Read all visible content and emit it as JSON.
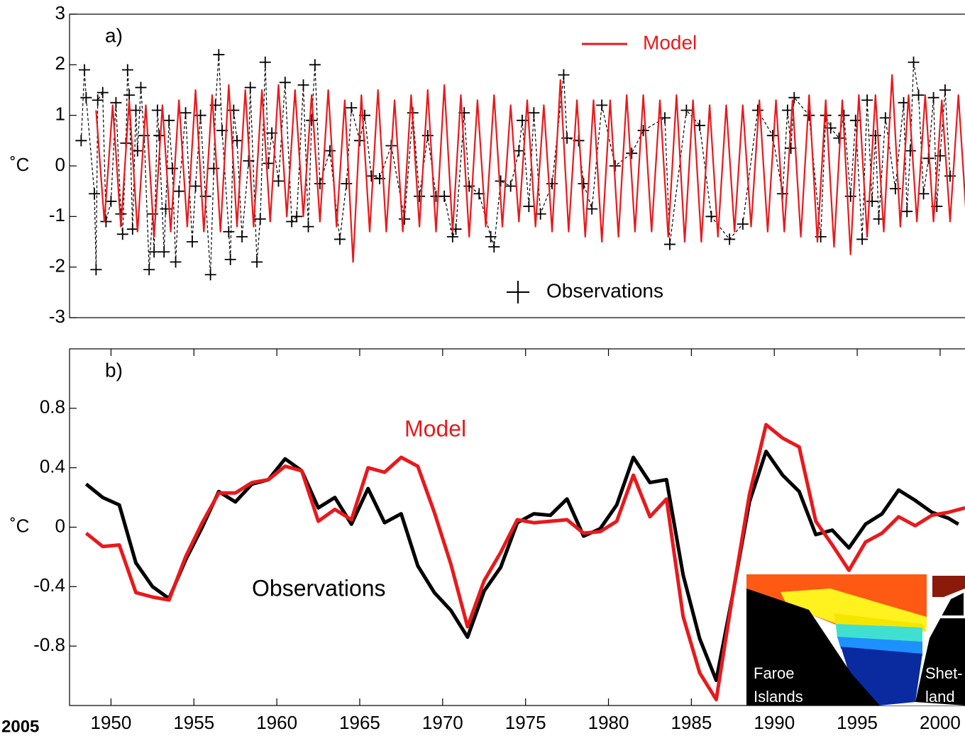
{
  "chart_data": [
    {
      "type": "line",
      "title": "a)",
      "ylabel": "˚C",
      "xlim": [
        1947.5,
        2001.5
      ],
      "ylim": [
        -3,
        3
      ],
      "yticks": [
        -3,
        -2,
        -1,
        0,
        1,
        2,
        3
      ],
      "series": [
        {
          "name": "Model",
          "color": "#e8191c",
          "x": [
            1949.1,
            1949.6,
            1950.1,
            1950.6,
            1951.1,
            1951.6,
            1952.1,
            1952.6,
            1953.1,
            1953.6,
            1954.1,
            1954.6,
            1955.1,
            1955.6,
            1956.1,
            1956.6,
            1957.1,
            1957.6,
            1958.1,
            1958.6,
            1959.1,
            1959.6,
            1960.1,
            1960.6,
            1961.1,
            1961.6,
            1962.1,
            1962.6,
            1963.1,
            1963.6,
            1964.1,
            1964.6,
            1965.1,
            1965.6,
            1966.1,
            1966.6,
            1967.1,
            1967.6,
            1968.1,
            1968.6,
            1969.1,
            1969.6,
            1970.1,
            1970.6,
            1971.1,
            1971.6,
            1972.1,
            1972.6,
            1973.1,
            1973.6,
            1974.1,
            1974.6,
            1975.1,
            1975.6,
            1976.1,
            1976.6,
            1977.1,
            1977.6,
            1978.1,
            1978.6,
            1979.1,
            1979.6,
            1980.1,
            1980.6,
            1981.1,
            1981.6,
            1982.1,
            1982.6,
            1983.1,
            1983.6,
            1984.1,
            1984.6,
            1985.1,
            1985.6,
            1986.1,
            1986.6,
            1987.1,
            1987.6,
            1988.1,
            1988.6,
            1989.1,
            1989.6,
            1990.1,
            1990.6,
            1991.1,
            1991.6,
            1992.1,
            1992.6,
            1993.1,
            1993.6,
            1994.1,
            1994.6,
            1995.1,
            1995.6,
            1996.1,
            1996.6,
            1997.1,
            1997.6,
            1998.1,
            1998.6,
            1999.1,
            1999.6,
            2000.1,
            2000.6,
            2001.1,
            2001.6
          ],
          "values": [
            1.1,
            -1.1,
            1.2,
            -1.2,
            1.3,
            -1.3,
            1.2,
            -1.4,
            1.2,
            -1.3,
            1.3,
            -1.2,
            1.5,
            -1.3,
            1.4,
            -1.3,
            1.6,
            -1.2,
            1.5,
            -1.2,
            1.5,
            -1.1,
            1.6,
            -1.0,
            1.5,
            -1.0,
            1.4,
            -1.1,
            1.5,
            -1.2,
            1.3,
            -1.9,
            1.4,
            -1.3,
            1.5,
            -1.3,
            1.3,
            -1.3,
            1.4,
            -1.2,
            1.5,
            -1.3,
            1.6,
            -1.3,
            1.4,
            -1.4,
            1.3,
            -1.2,
            1.4,
            -1.2,
            1.2,
            -1.1,
            1.3,
            -1.2,
            1.2,
            -1.3,
            1.7,
            -1.3,
            1.3,
            -1.4,
            1.3,
            -1.5,
            1.3,
            -1.4,
            1.4,
            -1.3,
            1.4,
            -1.3,
            1.3,
            -1.4,
            1.4,
            -1.5,
            1.3,
            -1.5,
            1.2,
            -1.4,
            1.2,
            -1.3,
            1.2,
            -1.2,
            1.3,
            -1.3,
            1.3,
            -1.3,
            1.3,
            -1.4,
            1.4,
            -1.5,
            1.3,
            -1.6,
            1.3,
            -1.75,
            1.4,
            -1.4,
            1.4,
            -1.3,
            1.8,
            -1.2,
            1.4,
            -1.1,
            1.4,
            -1.1,
            1.3,
            -1.1,
            1.4,
            -1.1
          ]
        },
        {
          "name": "Observations",
          "color": "#000000",
          "marker": "+",
          "linestyle": "dashed",
          "x": [
            1948.2,
            1948.4,
            1948.5,
            1949.0,
            1949.1,
            1949.2,
            1949.5,
            1949.7,
            1950.0,
            1950.3,
            1950.6,
            1950.7,
            1950.9,
            1951.0,
            1951.1,
            1951.3,
            1951.5,
            1951.6,
            1951.8,
            1952.0,
            1952.3,
            1952.5,
            1952.6,
            1952.8,
            1952.9,
            1953.2,
            1953.3,
            1953.5,
            1953.7,
            1953.9,
            1954.1,
            1954.5,
            1954.9,
            1955.1,
            1955.4,
            1955.7,
            1956.0,
            1956.2,
            1956.3,
            1956.5,
            1956.7,
            1957.1,
            1957.2,
            1957.4,
            1957.6,
            1957.9,
            1958.3,
            1958.4,
            1958.8,
            1959.0,
            1959.3,
            1959.5,
            1959.7,
            1960.1,
            1960.5,
            1960.9,
            1961.2,
            1961.6,
            1961.9,
            1962.1,
            1962.3,
            1962.6,
            1963.2,
            1963.8,
            1964.2,
            1964.5,
            1965.0,
            1965.3,
            1965.7,
            1966.2,
            1966.9,
            1967.7,
            1968.2,
            1968.6,
            1969.1,
            1969.6,
            1970.1,
            1970.6,
            1970.8,
            1971.3,
            1971.6,
            1972.2,
            1972.9,
            1973.1,
            1973.5,
            1974.1,
            1974.6,
            1974.8,
            1975.2,
            1975.5,
            1975.9,
            1976.6,
            1977.3,
            1977.5,
            1978.2,
            1978.5,
            1979.0,
            1979.6,
            1980.4,
            1981.4,
            1982.1,
            1983.4,
            1983.7,
            1984.7,
            1985.5,
            1986.2,
            1987.3,
            1988.1,
            1989.0,
            1989.9,
            1990.5,
            1990.8,
            1991.0,
            1991.2,
            1992.1,
            1992.8,
            1993.1,
            1993.4,
            1993.9,
            1994.2,
            1994.6,
            1994.9,
            1995.3,
            1995.6,
            1995.9,
            1996.1,
            1996.3,
            1996.7,
            1997.3,
            1997.8,
            1998.0,
            1998.2,
            1998.4,
            1998.7,
            1999.0,
            1999.3,
            1999.6,
            1999.8,
            2000.0,
            2000.3,
            2000.6
          ],
          "values": [
            0.5,
            1.9,
            1.35,
            -0.55,
            -2.05,
            1.3,
            1.45,
            -1.1,
            -0.7,
            1.25,
            -0.95,
            -1.35,
            0.45,
            1.9,
            1.4,
            -1.25,
            1.1,
            0.3,
            1.55,
            0.6,
            -2.05,
            -0.95,
            -1.7,
            1.1,
            0.6,
            -1.7,
            -0.85,
            0.9,
            -0.05,
            -1.9,
            -0.5,
            1.05,
            -1.5,
            -0.4,
            1.0,
            -0.6,
            -2.15,
            -0.05,
            1.2,
            2.2,
            0.7,
            -1.3,
            -1.85,
            1.1,
            0.5,
            -1.4,
            0.1,
            1.55,
            -1.9,
            -1.05,
            2.05,
            0.05,
            0.65,
            -0.3,
            1.65,
            -1.1,
            -1.0,
            1.6,
            -1.2,
            0.9,
            2.0,
            -0.35,
            0.3,
            -1.45,
            -0.35,
            1.15,
            0.5,
            1.0,
            -0.2,
            -0.25,
            0.4,
            -1.05,
            1.05,
            -0.6,
            0.6,
            -0.6,
            -0.6,
            -1.4,
            -1.25,
            1.05,
            -0.4,
            -0.55,
            -1.4,
            -1.6,
            -0.3,
            -0.4,
            0.3,
            0.9,
            -0.8,
            1.05,
            -0.95,
            -0.35,
            1.8,
            0.55,
            0.5,
            -0.35,
            -0.85,
            1.2,
            0.0,
            0.25,
            0.7,
            0.95,
            -1.55,
            1.1,
            0.8,
            -1.0,
            -1.45,
            -1.15,
            1.1,
            0.6,
            -0.55,
            1.1,
            0.35,
            1.35,
            1.0,
            -1.4,
            1.0,
            0.75,
            0.55,
            1.0,
            -0.6,
            0.9,
            -1.45,
            1.3,
            -0.7,
            0.6,
            -1.05,
            0.95,
            -0.45,
            1.25,
            -0.9,
            0.3,
            2.05,
            1.4,
            -0.55,
            0.15,
            1.35,
            -0.8,
            0.2,
            1.5,
            -0.2
          ]
        }
      ]
    },
    {
      "type": "line",
      "title": "b)",
      "ylabel": "˚C",
      "xlim": [
        1947.5,
        2001.5
      ],
      "xticks": [
        1950,
        1955,
        1960,
        1965,
        1970,
        1975,
        1980,
        1985,
        1990,
        1995,
        2000
      ],
      "ylim": [
        -1.2,
        1.2
      ],
      "yticks": [
        -0.8,
        -0.4,
        0,
        0.4,
        0.8
      ],
      "series": [
        {
          "name": "Model",
          "color": "#e8191c",
          "x": [
            1948.5,
            1949.5,
            1950.5,
            1951.5,
            1952.5,
            1953.5,
            1954.5,
            1955.5,
            1956.5,
            1957.5,
            1958.5,
            1959.5,
            1960.5,
            1961.5,
            1962.5,
            1963.5,
            1964.5,
            1965.5,
            1966.5,
            1967.5,
            1968.5,
            1969.5,
            1970.5,
            1971.5,
            1972.5,
            1973.5,
            1974.5,
            1975.5,
            1976.5,
            1977.5,
            1978.5,
            1979.5,
            1980.5,
            1981.5,
            1982.5,
            1983.5,
            1984.5,
            1985.5,
            1986.5,
            1987.5,
            1988.5,
            1989.5,
            1990.5,
            1991.5,
            1992.5,
            1993.5,
            1994.5,
            1995.5,
            1996.5,
            1997.5,
            1998.5,
            1999.5,
            2000.5,
            2001.5
          ],
          "values": [
            -0.04,
            -0.13,
            -0.12,
            -0.44,
            -0.47,
            -0.49,
            -0.2,
            0.03,
            0.23,
            0.23,
            0.3,
            0.32,
            0.41,
            0.38,
            0.04,
            0.12,
            0.05,
            0.4,
            0.37,
            0.47,
            0.41,
            0.1,
            -0.25,
            -0.67,
            -0.36,
            -0.17,
            0.05,
            0.03,
            0.04,
            0.05,
            -0.04,
            -0.03,
            0.04,
            0.35,
            0.07,
            0.19,
            -0.6,
            -0.98,
            -1.16,
            -0.45,
            0.22,
            0.69,
            0.6,
            0.54,
            0.04,
            -0.12,
            -0.29,
            -0.1,
            -0.04,
            0.07,
            0.01,
            0.08,
            0.1,
            0.13
          ]
        },
        {
          "name": "Observations",
          "color": "#000000",
          "x": [
            1948.5,
            1949.5,
            1950.5,
            1951.5,
            1952.5,
            1953.5,
            1954.5,
            1955.5,
            1956.5,
            1957.5,
            1958.5,
            1959.5,
            1960.5,
            1961.5,
            1962.5,
            1963.5,
            1964.5,
            1965.5,
            1966.5,
            1967.5,
            1968.5,
            1969.5,
            1970.5,
            1971.5,
            1972.5,
            1973.5,
            1974.5,
            1975.5,
            1976.5,
            1977.5,
            1978.5,
            1979.5,
            1980.5,
            1981.5,
            1982.5,
            1983.5,
            1984.5,
            1985.5,
            1986.5,
            1987.5,
            1988.5,
            1989.5,
            1990.5,
            1991.5,
            1992.5,
            1993.5,
            1994.5,
            1995.5,
            1996.5,
            1997.5,
            1998.5,
            1999.5,
            2000.5,
            2001.1
          ],
          "values": [
            0.29,
            0.2,
            0.15,
            -0.24,
            -0.4,
            -0.48,
            -0.22,
            0.0,
            0.24,
            0.17,
            0.29,
            0.32,
            0.46,
            0.38,
            0.13,
            0.2,
            0.02,
            0.26,
            0.03,
            0.09,
            -0.26,
            -0.44,
            -0.56,
            -0.74,
            -0.43,
            -0.27,
            0.03,
            0.09,
            0.08,
            0.19,
            -0.06,
            -0.01,
            0.15,
            0.47,
            0.3,
            0.32,
            -0.32,
            -0.75,
            -1.03,
            -0.45,
            0.17,
            0.51,
            0.35,
            0.24,
            -0.05,
            -0.02,
            -0.14,
            0.02,
            0.09,
            0.25,
            0.18,
            0.1,
            0.06,
            0.02
          ]
        }
      ]
    }
  ],
  "inset": {
    "left_label": [
      "Faroe",
      "Islands"
    ],
    "right_label": [
      "Shet-",
      "land"
    ]
  },
  "page_label": "2005"
}
